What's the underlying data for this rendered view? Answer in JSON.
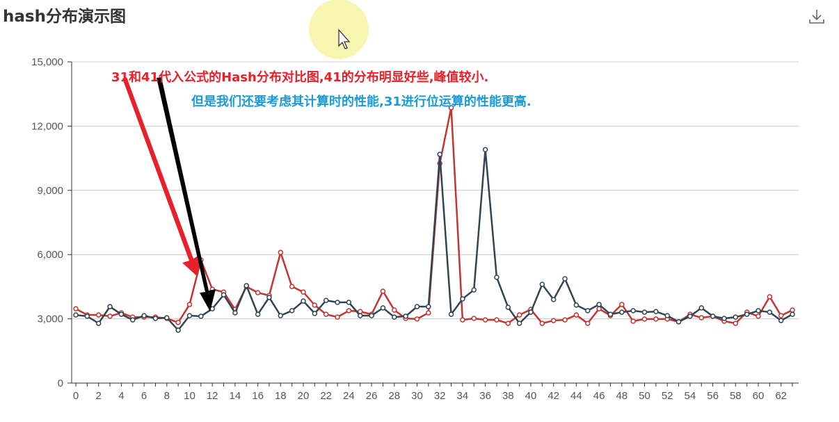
{
  "title": "hash分布演示图",
  "annotations": {
    "red": "31和41代入公式的Hash分布对比图,41的分布明显好些,峰值较小.",
    "blue": "但是我们还要考虑其计算时的性能,31进行位运算的性能更高."
  },
  "colors": {
    "series_red": "#c23531",
    "series_dark": "#2f4554",
    "ann_red": "#e8202a",
    "ann_blue": "#1a9ad6"
  },
  "chart_data": {
    "type": "line",
    "title": "hash分布演示图",
    "ylim": [
      0,
      15000
    ],
    "yticks": [
      "0",
      "3,000",
      "6,000",
      "9,000",
      "12,000",
      "15,000"
    ],
    "ytick_values": [
      0,
      3000,
      6000,
      9000,
      12000,
      15000
    ],
    "x": [
      0,
      1,
      2,
      3,
      4,
      5,
      6,
      7,
      8,
      9,
      10,
      11,
      12,
      13,
      14,
      15,
      16,
      17,
      18,
      19,
      20,
      21,
      22,
      23,
      24,
      25,
      26,
      27,
      28,
      29,
      30,
      31,
      32,
      33,
      34,
      35,
      36,
      37,
      38,
      39,
      40,
      41,
      42,
      43,
      44,
      45,
      46,
      47,
      48,
      49,
      50,
      51,
      52,
      53,
      54,
      55,
      56,
      57,
      58,
      59,
      60,
      61,
      62,
      63
    ],
    "xticks": [
      "0",
      "2",
      "4",
      "6",
      "8",
      "10",
      "12",
      "14",
      "16",
      "18",
      "20",
      "22",
      "24",
      "26",
      "28",
      "30",
      "32",
      "34",
      "36",
      "38",
      "40",
      "42",
      "44",
      "46",
      "48",
      "50",
      "52",
      "54",
      "56",
      "58",
      "60",
      "62"
    ],
    "grid": true,
    "series": [
      {
        "name": "31",
        "color": "#c23531",
        "values": [
          3470,
          3180,
          3180,
          3120,
          3280,
          3080,
          3080,
          3080,
          3020,
          2830,
          3670,
          5750,
          4380,
          4250,
          3440,
          4510,
          4220,
          4090,
          6100,
          4510,
          4250,
          3640,
          3210,
          3080,
          3380,
          3340,
          3210,
          4290,
          3410,
          3020,
          2990,
          3280,
          10260,
          12860,
          2950,
          3020,
          2950,
          2950,
          2790,
          3180,
          3440,
          2790,
          2920,
          2950,
          3180,
          2790,
          3470,
          3150,
          3670,
          2890,
          2990,
          2990,
          2990,
          2860,
          3210,
          3050,
          3120,
          2890,
          2790,
          3310,
          3120,
          4030,
          3150,
          3410
        ]
      },
      {
        "name": "41",
        "color": "#2f4554",
        "values": [
          3180,
          3120,
          2790,
          3570,
          3210,
          2950,
          3150,
          3020,
          3050,
          2470,
          3150,
          3120,
          3470,
          4120,
          3280,
          4550,
          3210,
          4000,
          3150,
          3380,
          3830,
          3250,
          3860,
          3770,
          3770,
          3150,
          3150,
          3510,
          3080,
          3120,
          3570,
          3570,
          10680,
          3210,
          3930,
          4350,
          10900,
          4940,
          3540,
          2790,
          3310,
          4610,
          3900,
          4870,
          3640,
          3380,
          3670,
          3210,
          3310,
          3380,
          3310,
          3340,
          3150,
          2860,
          3120,
          3510,
          3120,
          3020,
          3080,
          3210,
          3380,
          3310,
          2920,
          3210
        ]
      }
    ]
  }
}
